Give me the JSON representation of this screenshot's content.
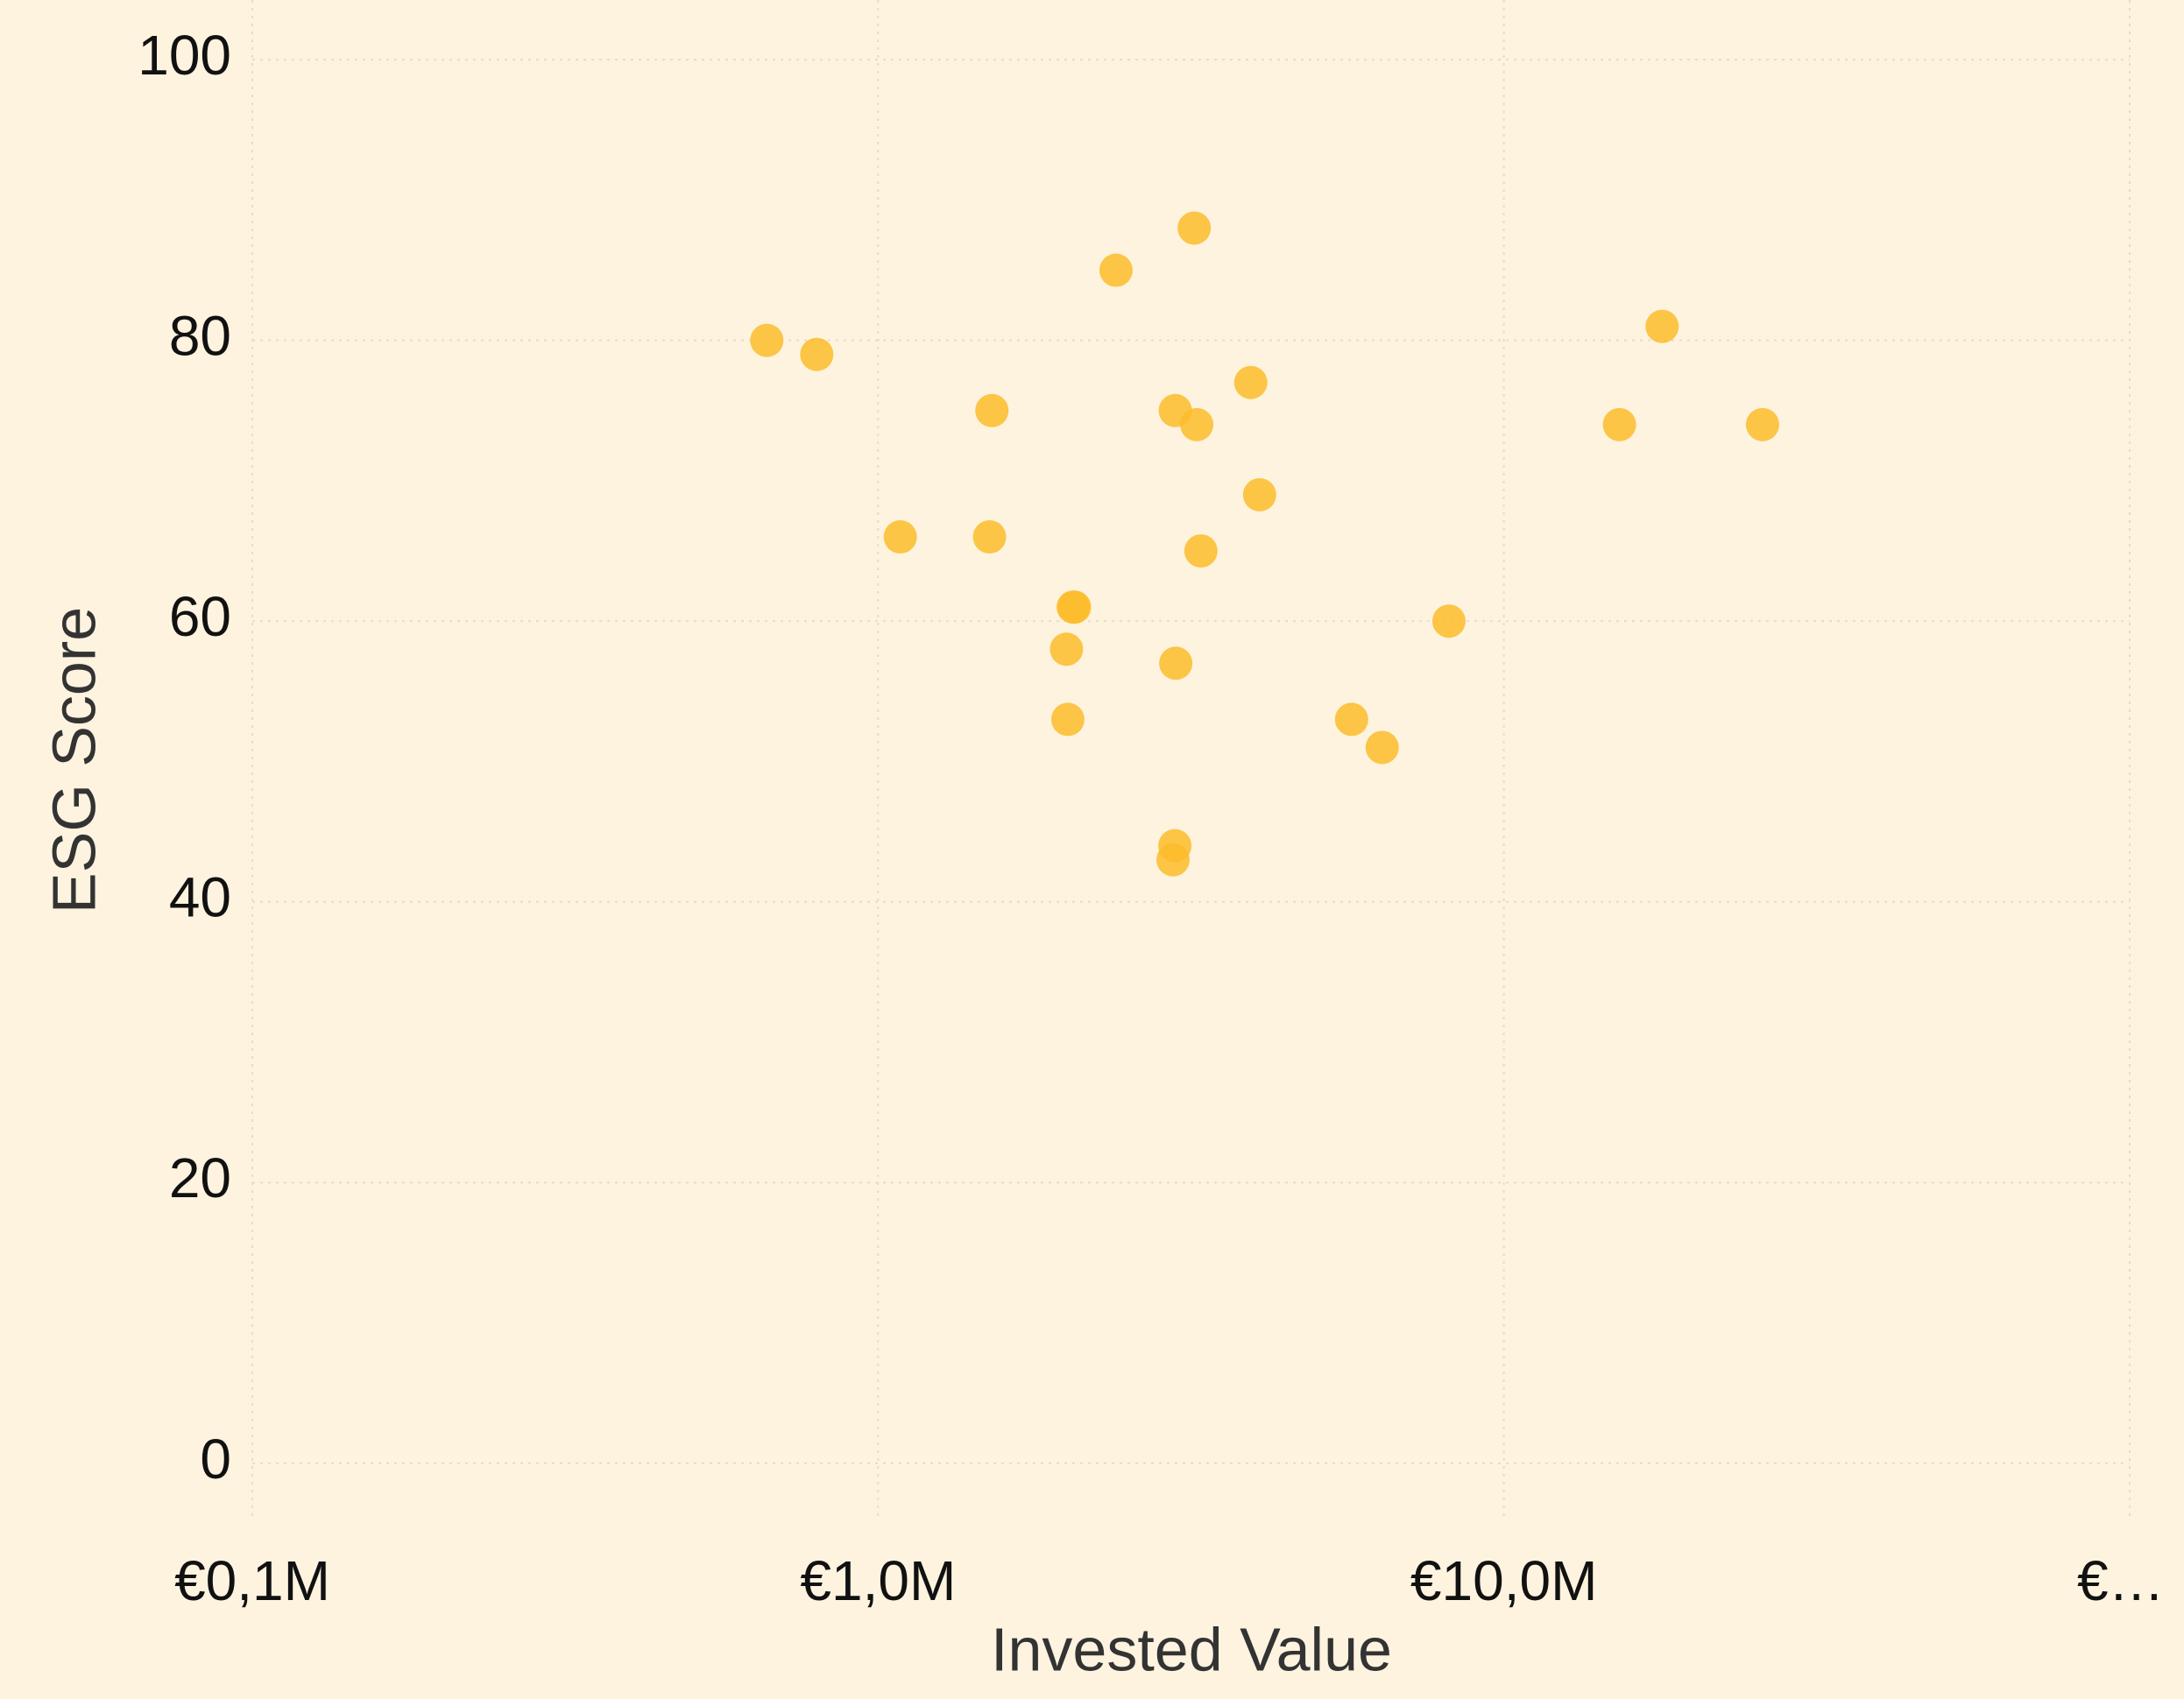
{
  "chart_data": {
    "type": "scatter",
    "xlabel": "Invested Value",
    "ylabel": "ESG Score",
    "x": [
      664000,
      798000,
      1085000,
      1507000,
      1520000,
      2000000,
      2010000,
      2050000,
      2060000,
      2400000,
      2960000,
      2980000,
      2985000,
      2990000,
      3200000,
      3230000,
      3280000,
      3940000,
      4070000,
      5710000,
      6390000,
      8170000,
      15300000,
      17900000,
      25900000
    ],
    "values": [
      80,
      79,
      66,
      66,
      75,
      58,
      53,
      61,
      61,
      85,
      43,
      44,
      75,
      57,
      88,
      74,
      65,
      77,
      69,
      53,
      51,
      60,
      74,
      81,
      74
    ],
    "color": "#fbbc2c",
    "xscale": "log",
    "xlim": [
      100000,
      100000000
    ],
    "xticks": [
      {
        "value": 100000,
        "label": "€0,1M"
      },
      {
        "value": 1000000,
        "label": "€1,0M"
      },
      {
        "value": 10000000,
        "label": "€10,0M"
      },
      {
        "value": 100000000,
        "label": "€…"
      }
    ],
    "ylim": [
      -4,
      104
    ],
    "yticks": [
      0,
      20,
      40,
      60,
      80,
      100
    ],
    "grid": true
  }
}
